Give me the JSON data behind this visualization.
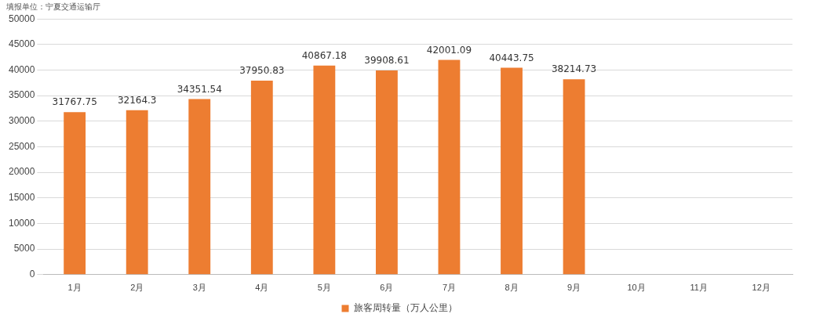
{
  "chart_data": {
    "type": "bar",
    "subtitle": "填报单位：宁夏交通运输厅",
    "categories": [
      "1月",
      "2月",
      "3月",
      "4月",
      "5月",
      "6月",
      "7月",
      "8月",
      "9月",
      "10月",
      "11月",
      "12月"
    ],
    "series": [
      {
        "name": "旅客周转量（万人公里）",
        "color": "#ed7d31",
        "values": [
          31767.75,
          32164.3,
          34351.54,
          37950.83,
          40867.18,
          39908.61,
          42001.09,
          40443.75,
          38214.73,
          null,
          null,
          null
        ]
      }
    ],
    "ylim": [
      0,
      50000
    ],
    "yticks": [
      0,
      5000,
      10000,
      15000,
      20000,
      25000,
      30000,
      35000,
      40000,
      45000,
      50000
    ],
    "grid": "y",
    "legend": "bottom",
    "data_labels": true
  }
}
